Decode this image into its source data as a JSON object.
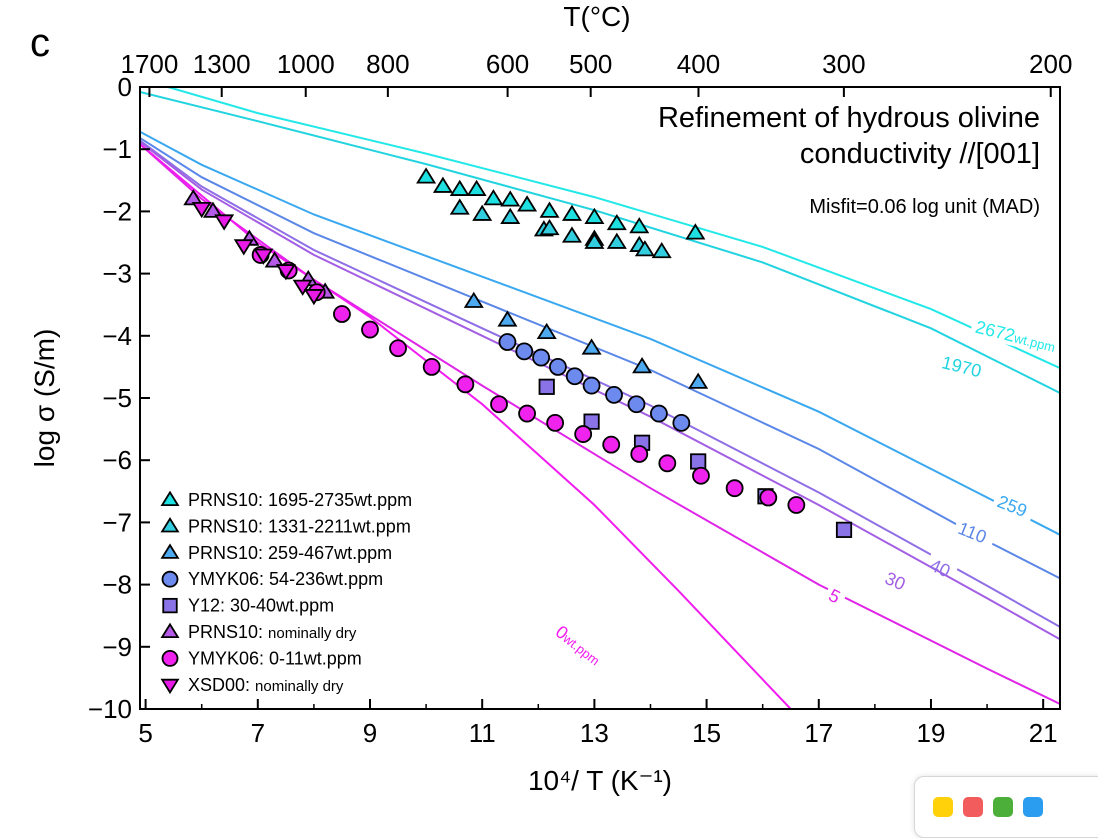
{
  "panel_label": "c",
  "chart_data": {
    "type": "scatter",
    "title": "Refinement of hydrous olivine",
    "title_line2": "conductivity //[001]",
    "annotation": "Misfit=0.06 log unit (MAD)",
    "xlabel": "10⁴/ T (K⁻¹)",
    "ylabel": "log σ (S/m)",
    "top_axis_label": "T(°C)",
    "xlim": [
      4.9,
      21.3
    ],
    "ylim": [
      -10,
      0
    ],
    "x_ticks": [
      5,
      7,
      9,
      11,
      13,
      15,
      17,
      19,
      21
    ],
    "y_ticks": [
      0,
      -1,
      -2,
      -3,
      -4,
      -5,
      -6,
      -7,
      -8,
      -9,
      -10
    ],
    "y_tick_labels": [
      "0",
      "−1",
      "−2",
      "−3",
      "−4",
      "−5",
      "−6",
      "−7",
      "−8",
      "−9",
      "−10"
    ],
    "top_ticks_celsius": [
      1700,
      1300,
      1000,
      800,
      600,
      500,
      400,
      300,
      200
    ],
    "top_tick_labels": [
      "1700",
      "1300",
      "1000",
      "800",
      "600",
      "500",
      "400",
      "300",
      "200"
    ],
    "grid": false,
    "legend_position": "bottom-left",
    "curves": [
      {
        "label": "2672",
        "unit": "wt.ppm",
        "color": "#22e8e8",
        "points": [
          [
            5.4,
            0
          ],
          [
            7,
            -0.42
          ],
          [
            10,
            -1.07
          ],
          [
            13,
            -1.77
          ],
          [
            16,
            -2.57
          ],
          [
            19,
            -3.57
          ],
          [
            21.3,
            -4.52
          ]
        ],
        "label_x": 19.8,
        "label_y": -3.85,
        "label_angle": 14
      },
      {
        "label": "1970",
        "unit": "",
        "color": "#22d3e0",
        "points": [
          [
            4.9,
            -0.08
          ],
          [
            7,
            -0.55
          ],
          [
            10,
            -1.24
          ],
          [
            13,
            -1.98
          ],
          [
            16,
            -2.82
          ],
          [
            19,
            -3.88
          ],
          [
            21.3,
            -4.92
          ]
        ],
        "label_x": 19.2,
        "label_y": -4.42,
        "label_angle": 14
      },
      {
        "label": "259",
        "unit": "",
        "color": "#3aa8f0",
        "points": [
          [
            4.9,
            -0.72
          ],
          [
            6,
            -1.25
          ],
          [
            8,
            -2.05
          ],
          [
            11,
            -3.05
          ],
          [
            14,
            -4.05
          ],
          [
            17,
            -5.22
          ],
          [
            20,
            -6.6
          ],
          [
            21.3,
            -7.2
          ]
        ],
        "label_x": 20.2,
        "label_y": -6.65,
        "label_angle": 22
      },
      {
        "label": "110",
        "unit": "",
        "color": "#5b87e8",
        "points": [
          [
            4.9,
            -0.82
          ],
          [
            6,
            -1.45
          ],
          [
            8,
            -2.35
          ],
          [
            11,
            -3.45
          ],
          [
            14,
            -4.55
          ],
          [
            17,
            -5.82
          ],
          [
            20,
            -7.3
          ],
          [
            21.3,
            -7.9
          ]
        ],
        "label_x": 19.5,
        "label_y": -7.08,
        "label_angle": 22
      },
      {
        "label": "40",
        "unit": "",
        "color": "#8f6ee6",
        "points": [
          [
            4.9,
            -0.86
          ],
          [
            6,
            -1.6
          ],
          [
            8,
            -2.62
          ],
          [
            11,
            -3.88
          ],
          [
            14,
            -5.12
          ],
          [
            17,
            -6.52
          ],
          [
            20,
            -8.02
          ],
          [
            21.3,
            -8.68
          ]
        ],
        "label_x": 19.0,
        "label_y": -7.67,
        "label_angle": 24
      },
      {
        "label": "30",
        "unit": "",
        "color": "#a35ee4",
        "points": [
          [
            4.9,
            -0.88
          ],
          [
            6,
            -1.65
          ],
          [
            8,
            -2.7
          ],
          [
            11,
            -4.0
          ],
          [
            14,
            -5.3
          ],
          [
            17,
            -6.72
          ],
          [
            20,
            -8.22
          ],
          [
            21.3,
            -8.88
          ]
        ],
        "label_x": 18.2,
        "label_y": -7.88,
        "label_angle": 24
      },
      {
        "label": "5",
        "unit": "",
        "color": "#e025e8",
        "points": [
          [
            4.9,
            -0.92
          ],
          [
            6,
            -1.8
          ],
          [
            8,
            -3.1
          ],
          [
            11,
            -4.8
          ],
          [
            14,
            -6.45
          ],
          [
            17,
            -8.0
          ],
          [
            20,
            -9.35
          ],
          [
            21.3,
            -9.92
          ]
        ],
        "label_x": 17.2,
        "label_y": -8.15,
        "label_angle": 27
      },
      {
        "label": "0",
        "unit": "wt.ppm",
        "color": "#f21cf0",
        "points": [
          [
            4.9,
            -0.92
          ],
          [
            7,
            -2.5
          ],
          [
            9,
            -3.7
          ],
          [
            11,
            -5.1
          ],
          [
            13,
            -6.72
          ],
          [
            14.5,
            -8.1
          ],
          [
            16.5,
            -10.0
          ]
        ],
        "label_x": 12.35,
        "label_y": -8.72,
        "label_angle": 38
      }
    ],
    "series": [
      {
        "name": "PRNS10: ",
        "name_sub": "1695-2735wt.ppm",
        "marker": "triangle-up",
        "color": "#1ee0e0",
        "points": [
          [
            10.0,
            -1.45
          ],
          [
            10.3,
            -1.6
          ],
          [
            10.6,
            -1.65
          ],
          [
            10.9,
            -1.65
          ],
          [
            11.2,
            -1.8
          ],
          [
            11.5,
            -1.82
          ],
          [
            11.8,
            -1.9
          ],
          [
            12.2,
            -2.0
          ],
          [
            12.6,
            -2.05
          ],
          [
            13.0,
            -2.1
          ],
          [
            13.4,
            -2.2
          ],
          [
            13.8,
            -2.25
          ],
          [
            14.8,
            -2.35
          ]
        ]
      },
      {
        "name": "PRNS10: ",
        "name_sub": "1331-2211wt.ppm",
        "marker": "triangle-up",
        "color": "#33cde0",
        "points": [
          [
            10.6,
            -1.95
          ],
          [
            11.0,
            -2.05
          ],
          [
            11.5,
            -2.1
          ],
          [
            12.1,
            -2.3
          ],
          [
            12.6,
            -2.4
          ],
          [
            13.0,
            -2.45
          ],
          [
            13.4,
            -2.5
          ],
          [
            13.8,
            -2.55
          ],
          [
            14.2,
            -2.65
          ],
          [
            13.9,
            -2.62
          ],
          [
            13.0,
            -2.5
          ],
          [
            12.2,
            -2.28
          ]
        ]
      },
      {
        "name": "PRNS10: ",
        "name_sub": "259-467wt.ppm",
        "marker": "triangle-up",
        "color": "#4eaaf0",
        "points": [
          [
            10.85,
            -3.45
          ],
          [
            11.45,
            -3.75
          ],
          [
            12.15,
            -3.95
          ],
          [
            12.95,
            -4.2
          ],
          [
            13.85,
            -4.5
          ],
          [
            14.85,
            -4.75
          ]
        ]
      },
      {
        "name": "YMYK06: ",
        "name_sub": "54-236wt.ppm",
        "marker": "circle",
        "color": "#6d8aee",
        "points": [
          [
            11.45,
            -4.1
          ],
          [
            11.75,
            -4.25
          ],
          [
            12.05,
            -4.35
          ],
          [
            12.35,
            -4.5
          ],
          [
            12.65,
            -4.65
          ],
          [
            12.95,
            -4.8
          ],
          [
            13.35,
            -4.95
          ],
          [
            13.75,
            -5.1
          ],
          [
            14.15,
            -5.25
          ],
          [
            14.55,
            -5.4
          ]
        ]
      },
      {
        "name": "Y12: ",
        "name_sub": "30-40wt.ppm",
        "marker": "square",
        "color": "#8a73e6",
        "points": [
          [
            12.15,
            -4.82
          ],
          [
            12.95,
            -5.38
          ],
          [
            13.85,
            -5.72
          ],
          [
            14.85,
            -6.02
          ],
          [
            16.05,
            -6.58
          ],
          [
            17.45,
            -7.12
          ]
        ]
      },
      {
        "name": "PRNS10: ",
        "name_sub": "nominally dry",
        "marker": "triangle-up",
        "color": "#b45ae6",
        "points": [
          [
            5.85,
            -1.8
          ],
          [
            6.2,
            -2.0
          ],
          [
            6.85,
            -2.45
          ],
          [
            7.3,
            -2.8
          ],
          [
            7.9,
            -3.1
          ],
          [
            8.2,
            -3.3
          ]
        ]
      },
      {
        "name": "YMYK06: ",
        "name_sub": "0-11wt.ppm",
        "marker": "circle",
        "color": "#f022ee",
        "points": [
          [
            7.05,
            -2.7
          ],
          [
            7.55,
            -2.95
          ],
          [
            8.05,
            -3.3
          ],
          [
            8.5,
            -3.65
          ],
          [
            9.0,
            -3.9
          ],
          [
            9.5,
            -4.2
          ],
          [
            10.1,
            -4.5
          ],
          [
            10.7,
            -4.78
          ],
          [
            11.3,
            -5.1
          ],
          [
            11.8,
            -5.25
          ],
          [
            12.3,
            -5.4
          ],
          [
            12.8,
            -5.58
          ],
          [
            13.3,
            -5.75
          ],
          [
            13.8,
            -5.9
          ],
          [
            14.3,
            -6.05
          ],
          [
            14.9,
            -6.25
          ],
          [
            15.5,
            -6.45
          ],
          [
            16.1,
            -6.6
          ],
          [
            16.6,
            -6.72
          ]
        ]
      },
      {
        "name": "XSD00: ",
        "name_sub": "nominally dry",
        "marker": "triangle-down",
        "color": "#e81ae8",
        "points": [
          [
            6.0,
            -1.95
          ],
          [
            6.4,
            -2.15
          ],
          [
            6.75,
            -2.55
          ],
          [
            7.1,
            -2.7
          ],
          [
            7.5,
            -2.95
          ],
          [
            7.8,
            -3.2
          ],
          [
            8.0,
            -3.35
          ]
        ]
      }
    ]
  },
  "badge": {
    "colors": [
      "#ffd10a",
      "#f25c5c",
      "#4caf3a",
      "#2b9df0"
    ]
  }
}
